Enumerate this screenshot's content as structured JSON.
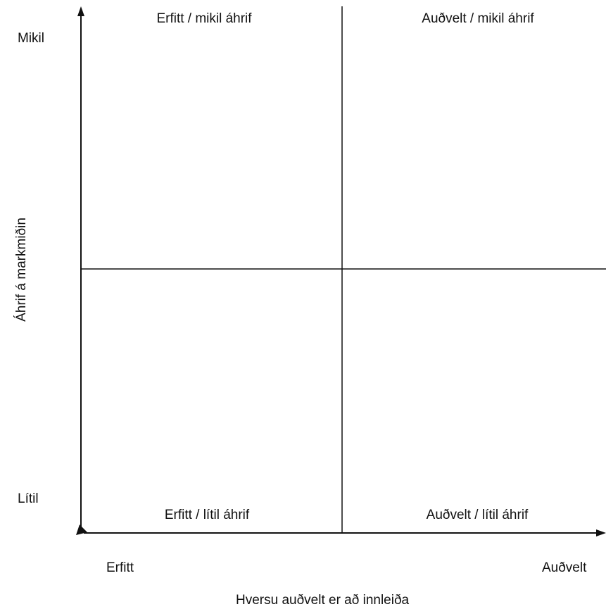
{
  "quadrants": {
    "top_left": "Erfitt / mikil áhrif",
    "top_right": "Auðvelt / mikil áhrif",
    "bottom_left": "Erfitt / lítil áhrif",
    "bottom_right": "Auðvelt / lítil áhrif"
  },
  "y_axis": {
    "title": "Áhrif á markmiðin",
    "high_label": "Mikil",
    "low_label": "Lítil"
  },
  "x_axis": {
    "title": "Hversu auðvelt er að innleiða",
    "low_label": "Erfitt",
    "high_label": "Auðvelt"
  },
  "colors": {
    "line": "#111111",
    "text": "#111111",
    "background": "#ffffff"
  }
}
